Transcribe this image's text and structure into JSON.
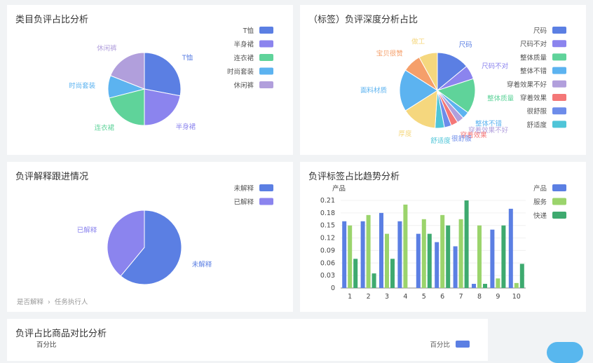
{
  "panels": {
    "category": {
      "title": "类目负评占比分析"
    },
    "depth": {
      "title": "（标签）负评深度分析占比"
    },
    "explain": {
      "title": "负评解释跟进情况",
      "footer": {
        "item1": "是否解释",
        "item2": "任务执行人",
        "sep": "›"
      }
    },
    "trend": {
      "title": "负评标签占比趋势分析"
    },
    "product": {
      "title": "负评占比商品对比分析",
      "y_label": "百分比",
      "legend": "百分比"
    }
  },
  "chart_data": [
    {
      "id": "category",
      "type": "pie",
      "title": "类目负评占比分析",
      "slices": [
        {
          "label": "T恤",
          "value": 28,
          "color": "#5b7fe3"
        },
        {
          "label": "半身裙",
          "value": 22,
          "color": "#8b84ee"
        },
        {
          "label": "连衣裙",
          "value": 21,
          "color": "#5fd39a"
        },
        {
          "label": "时尚套装",
          "value": 10,
          "color": "#5cb3f0"
        },
        {
          "label": "休闲裤",
          "value": 19,
          "color": "#b19fdc"
        }
      ],
      "legend": "right"
    },
    {
      "id": "depth",
      "type": "pie",
      "title": "（标签）负评深度分析占比",
      "slices": [
        {
          "label": "尺码",
          "value": 14,
          "color": "#5b7fe3"
        },
        {
          "label": "尺码不对",
          "value": 6,
          "color": "#8b84ee"
        },
        {
          "label": "整体质量",
          "value": 15,
          "color": "#5fd39a"
        },
        {
          "label": "整体不错",
          "value": 3,
          "color": "#5cb3f0"
        },
        {
          "label": "穿着效果不好",
          "value": 3,
          "color": "#b19fdc"
        },
        {
          "label": "穿着效果",
          "value": 3,
          "color": "#f47777"
        },
        {
          "label": "很舒服",
          "value": 3,
          "color": "#6d8cea"
        },
        {
          "label": "舒适度",
          "value": 4,
          "color": "#4fc5d8"
        },
        {
          "label": "厚度",
          "value": 15,
          "color": "#f5d77e"
        },
        {
          "label": "面料材质",
          "value": 18,
          "color": "#5cb3f0"
        },
        {
          "label": "宝贝很赞",
          "value": 8,
          "color": "#f59f6a"
        },
        {
          "label": "做工",
          "value": 8,
          "color": "#f5d77e"
        }
      ],
      "legend_items": [
        {
          "label": "尺码",
          "color": "#5b7fe3"
        },
        {
          "label": "尺码不对",
          "color": "#8b84ee"
        },
        {
          "label": "整体质量",
          "color": "#5fd39a"
        },
        {
          "label": "整体不错",
          "color": "#5cb3f0"
        },
        {
          "label": "穿着效果不好",
          "color": "#b19fdc"
        },
        {
          "label": "穿着效果",
          "color": "#f47777"
        },
        {
          "label": "很舒服",
          "color": "#6d8cea"
        },
        {
          "label": "舒适度",
          "color": "#4fc5d8"
        }
      ],
      "legend": "right"
    },
    {
      "id": "explain",
      "type": "pie",
      "title": "负评解释跟进情况",
      "slices": [
        {
          "label": "未解释",
          "value": 61,
          "color": "#5b7fe3"
        },
        {
          "label": "已解释",
          "value": 39,
          "color": "#8b84ee"
        }
      ],
      "legend": "top-right"
    },
    {
      "id": "trend",
      "type": "bar",
      "title": "负评标签占比趋势分析",
      "ylabel": "产品",
      "categories": [
        "1",
        "2",
        "3",
        "4",
        "5",
        "6",
        "7",
        "8",
        "9",
        "10"
      ],
      "yticks": [
        "0",
        "0.03",
        "0.06",
        "0.09",
        "0.12",
        "0.15",
        "0.18",
        "0.21"
      ],
      "ylim": [
        0,
        0.21
      ],
      "series": [
        {
          "name": "产品",
          "color": "#5b7fe3",
          "values": [
            0.16,
            0.16,
            0.18,
            0.16,
            0.13,
            0.11,
            0.1,
            0.01,
            0.14,
            0.19
          ]
        },
        {
          "name": "服务",
          "color": "#9bd46c",
          "values": [
            0.15,
            0.175,
            0.13,
            0.2,
            0.165,
            0.175,
            0.165,
            0.15,
            0.023,
            0.012
          ]
        },
        {
          "name": "快递",
          "color": "#3eaa6f",
          "values": [
            0.07,
            0.035,
            0.07,
            0,
            0.13,
            0.15,
            0.21,
            0.01,
            0.15,
            0.058
          ]
        }
      ],
      "legend": "top-right"
    },
    {
      "id": "product",
      "type": "bar",
      "title": "负评占比商品对比分析",
      "ylabel": "百分比",
      "series": [
        {
          "name": "百分比",
          "color": "#5b7fe3",
          "values": []
        }
      ],
      "legend": "top-right"
    }
  ]
}
